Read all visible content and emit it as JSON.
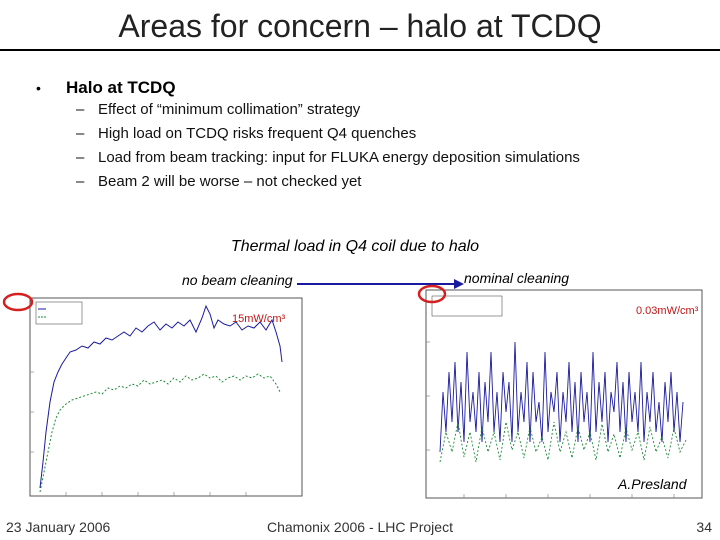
{
  "slide": {
    "title": "Areas for concern – halo at TCDQ",
    "bullet": "Halo at TCDQ",
    "subbullets": [
      "Effect of “minimum collimation” strategy",
      "High load on TCDQ risks frequent Q4 quenches",
      "Load from beam tracking: input for FLUKA energy deposition simulations",
      "Beam 2 will be worse – not checked yet"
    ],
    "figure_caption": "Thermal load in Q4 coil due to halo",
    "label_left": "no beam cleaning",
    "label_right": "nominal cleaning",
    "left_plot_annotation": "15mW/cm³",
    "right_plot_annotation": "0.03mW/cm³",
    "author": "A.Presland",
    "footer_date": "23 January 2006",
    "footer_center": "Chamonix 2006 - LHC Project",
    "page_number": "34"
  },
  "colors": {
    "series_blue": "#1a1aa0",
    "series_green": "#1f8a3a",
    "highlight_red": "#d42020"
  }
}
